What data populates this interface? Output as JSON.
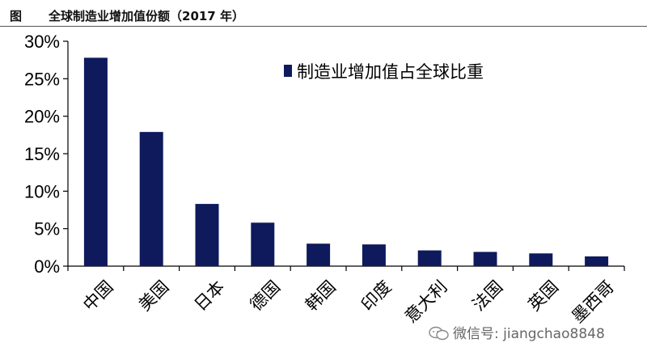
{
  "header": {
    "label": "图",
    "title": "全球制造业增加值份额（2017 年）"
  },
  "chart_data": {
    "type": "bar",
    "title": "全球制造业增加值份额（2017 年）",
    "categories": [
      "中国",
      "美国",
      "日本",
      "德国",
      "韩国",
      "印度",
      "意大利",
      "法国",
      "英国",
      "墨西哥"
    ],
    "series": [
      {
        "name": "制造业增加值占全球比重",
        "values": [
          27.8,
          17.9,
          8.3,
          5.8,
          3.0,
          2.9,
          2.1,
          1.9,
          1.7,
          1.3
        ]
      }
    ],
    "ylim": [
      0,
      30
    ],
    "yticks": [
      0,
      5,
      10,
      15,
      20,
      25,
      30
    ],
    "ytick_format": "percent",
    "bar_color": "#0e1a5c",
    "grid": false,
    "legend_position": "top-right"
  },
  "watermark": {
    "text": "微信号: jiangchao8848",
    "icon": "wechat-icon"
  }
}
